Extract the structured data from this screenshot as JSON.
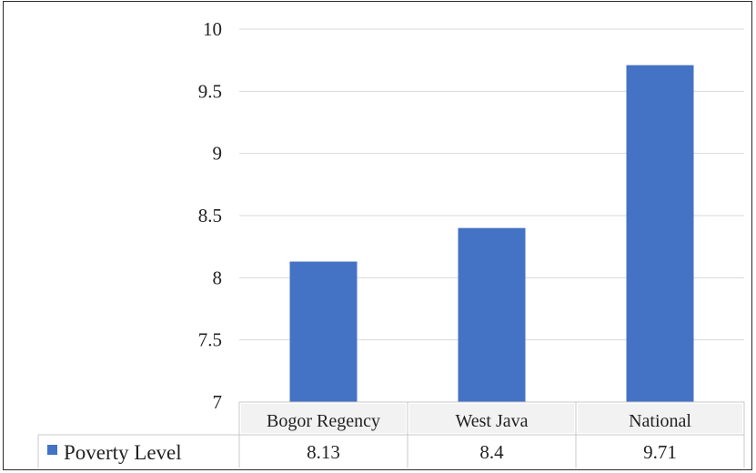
{
  "chart_data": {
    "type": "bar",
    "categories": [
      "Bogor Regency",
      "West Java",
      "National"
    ],
    "series": [
      {
        "name": "Poverty Level",
        "values": [
          8.13,
          8.4,
          9.71
        ],
        "color": "#4472C4"
      }
    ],
    "table_values": [
      "8.13",
      "8.4",
      "9.71"
    ],
    "ylim": [
      7,
      10
    ],
    "yticks": [
      7,
      7.5,
      8,
      8.5,
      9,
      9.5,
      10
    ],
    "ytick_labels": [
      "7",
      "7.5",
      "8",
      "8.5",
      "9",
      "9.5",
      "10"
    ],
    "grid": true,
    "legend": "data-table-left",
    "title": "",
    "xlabel": "",
    "ylabel": ""
  }
}
